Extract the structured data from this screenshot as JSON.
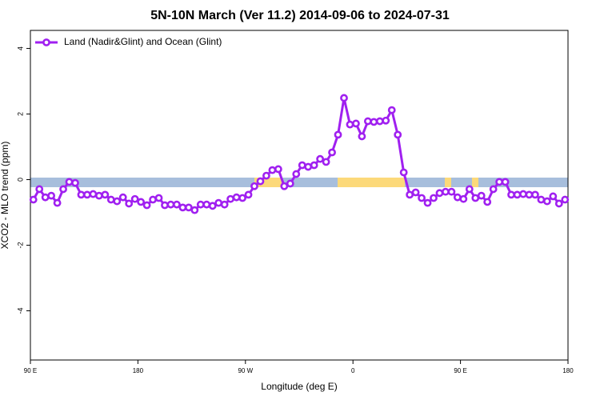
{
  "chart_data": {
    "type": "line",
    "title": "5N-10N March (Ver 11.2)   2014-09-06 to 2024-07-31",
    "x_label": "Longitude (deg E)",
    "y_label": "XCO2 - MLO trend (ppm)",
    "xlim": [
      90,
      540
    ],
    "ylim": [
      -5.5,
      4.55
    ],
    "xticks": [
      {
        "value": 90,
        "label": "90 E"
      },
      180,
      {
        "value": 270,
        "label": "90 W"
      },
      {
        "value": 360,
        "label": "0"
      },
      {
        "value": 450,
        "label": "90 E"
      },
      {
        "value": 540,
        "label": "180"
      }
    ],
    "yticks": [
      -4,
      -2,
      0,
      2,
      4
    ],
    "legend": "top-left",
    "x": [
      92.5,
      97.5,
      102.5,
      107.5,
      112.5,
      117.5,
      122.5,
      127.5,
      132.5,
      137.5,
      142.5,
      147.5,
      152.5,
      157.5,
      162.5,
      167.5,
      172.5,
      177.5,
      182.5,
      187.5,
      192.5,
      197.5,
      202.5,
      207.5,
      212.5,
      217.5,
      222.5,
      227.5,
      232.5,
      237.5,
      242.5,
      247.5,
      252.5,
      257.5,
      262.5,
      267.5,
      272.5,
      277.5,
      282.5,
      287.5,
      292.5,
      297.5,
      302.5,
      307.5,
      312.5,
      317.5,
      322.5,
      327.5,
      332.5,
      337.5,
      342.5,
      347.5,
      352.5,
      357.5,
      362.5,
      367.5,
      372.5,
      377.5,
      382.5,
      387.5,
      392.5,
      397.5,
      402.5,
      407.5,
      412.5,
      417.5,
      422.5,
      427.5,
      432.5,
      437.5,
      442.5,
      447.5,
      452.5,
      457.5,
      462.5,
      467.5,
      472.5,
      477.5,
      482.5,
      487.5,
      492.5,
      497.5,
      502.5,
      507.5,
      512.5,
      517.5,
      522.5,
      527.5,
      532.5,
      537.5
    ],
    "series": [
      {
        "name": "Land (Nadir&Glint) and Ocean (Glint)",
        "color": "#a020f0",
        "values": [
          -0.61,
          -0.29,
          -0.54,
          -0.49,
          -0.71,
          -0.29,
          -0.07,
          -0.1,
          -0.46,
          -0.46,
          -0.44,
          -0.49,
          -0.46,
          -0.61,
          -0.66,
          -0.54,
          -0.73,
          -0.59,
          -0.68,
          -0.78,
          -0.61,
          -0.56,
          -0.78,
          -0.76,
          -0.76,
          -0.85,
          -0.85,
          -0.93,
          -0.76,
          -0.76,
          -0.8,
          -0.71,
          -0.76,
          -0.59,
          -0.54,
          -0.56,
          -0.46,
          -0.2,
          -0.05,
          0.12,
          0.29,
          0.32,
          -0.2,
          -0.12,
          0.17,
          0.44,
          0.39,
          0.44,
          0.63,
          0.54,
          0.83,
          1.37,
          2.49,
          1.68,
          1.71,
          1.32,
          1.78,
          1.76,
          1.78,
          1.8,
          2.12,
          1.37,
          0.22,
          -0.46,
          -0.39,
          -0.56,
          -0.71,
          -0.56,
          -0.41,
          -0.37,
          -0.37,
          -0.54,
          -0.59,
          -0.29,
          -0.56,
          -0.49,
          -0.68,
          -0.29,
          -0.07,
          -0.07,
          -0.46,
          -0.46,
          -0.44,
          -0.46,
          -0.46,
          -0.61,
          -0.66,
          -0.51,
          -0.73,
          -0.61
        ]
      }
    ]
  }
}
